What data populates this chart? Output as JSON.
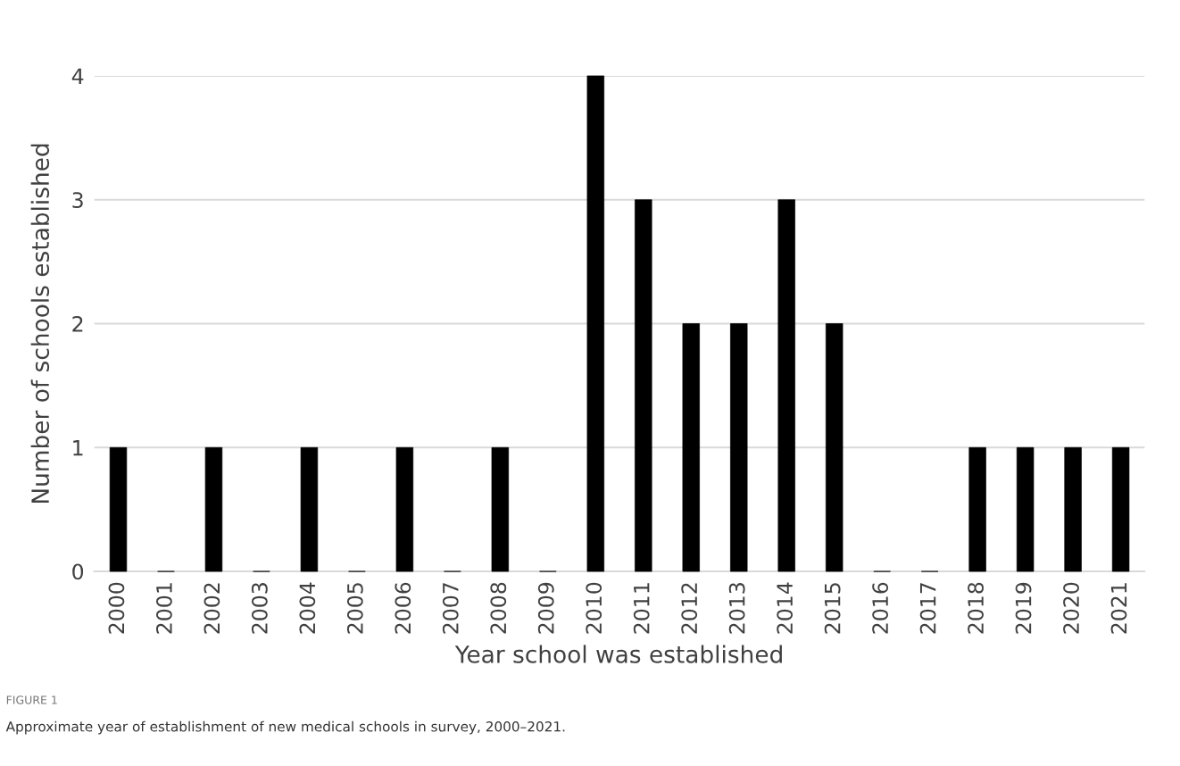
{
  "chart_data": {
    "type": "bar",
    "xlabel": "Year school was established",
    "ylabel": "Number of schools established",
    "categories": [
      "2000",
      "2001",
      "2002",
      "2003",
      "2004",
      "2005",
      "2006",
      "2007",
      "2008",
      "2009",
      "2010",
      "2011",
      "2012",
      "2013",
      "2014",
      "2015",
      "2016",
      "2017",
      "2018",
      "2019",
      "2020",
      "2021"
    ],
    "values": [
      1,
      0,
      1,
      0,
      1,
      0,
      1,
      0,
      1,
      0,
      4,
      3,
      2,
      2,
      3,
      2,
      0,
      0,
      1,
      1,
      1,
      1
    ],
    "color": "#000000",
    "ylim": [
      0,
      4
    ],
    "yticks": [
      0,
      1,
      2,
      3,
      4
    ],
    "grid": "y",
    "legend": false,
    "annotations": [
      "FIGURE 1",
      "Approximate year of establishment of new medical schools in survey, 2000–2021."
    ]
  }
}
